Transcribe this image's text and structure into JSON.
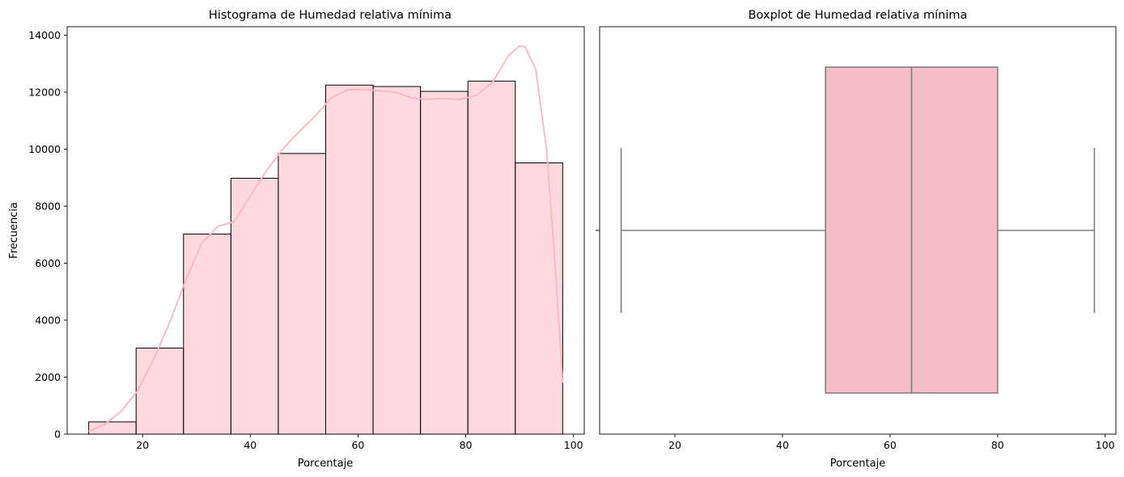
{
  "chart_data": [
    {
      "type": "bar",
      "subtype": "histogram-with-kde",
      "title": "Histograma de Humedad relativa mínima",
      "xlabel": "Porcentaje",
      "ylabel": "Frecuencia",
      "xlim": [
        6,
        102
      ],
      "ylim": [
        0,
        14300
      ],
      "xticks": [
        20,
        40,
        60,
        80,
        100
      ],
      "yticks": [
        0,
        2000,
        4000,
        6000,
        8000,
        10000,
        12000,
        14000
      ],
      "bin_edges": [
        10,
        18.8,
        27.6,
        36.4,
        45.2,
        54,
        62.8,
        71.6,
        80.4,
        89.2,
        98
      ],
      "values": [
        430,
        3020,
        7020,
        8980,
        9850,
        12250,
        12200,
        12030,
        12390,
        9520
      ],
      "bar_color": "#ffb6c1",
      "bar_edge_color": "#000000",
      "kde": {
        "color": "#ffb6c1",
        "x": [
          10,
          13,
          16,
          19,
          22,
          25,
          28,
          31,
          34,
          37,
          40,
          43,
          46,
          49,
          52,
          55,
          58,
          61,
          64,
          67,
          70,
          73,
          76,
          79,
          82,
          85,
          88,
          90,
          91,
          93,
          95,
          96.5,
          98
        ],
        "y": [
          100,
          350,
          800,
          1500,
          2600,
          3900,
          5400,
          6700,
          7300,
          7450,
          8350,
          9250,
          10000,
          10600,
          11150,
          11800,
          12080,
          12100,
          12050,
          12000,
          11800,
          11750,
          11780,
          11750,
          11900,
          12350,
          13300,
          13620,
          13600,
          12800,
          10000,
          6200,
          1800
        ]
      }
    },
    {
      "type": "box",
      "title": "Boxplot de Humedad relativa mínima",
      "xlabel": "Porcentaje",
      "xlim": [
        6,
        102
      ],
      "xticks": [
        20,
        40,
        60,
        80,
        100
      ],
      "whisker_low": 10,
      "q1": 48,
      "median": 64,
      "q3": 80,
      "whisker_high": 98,
      "box_color": "#f4bdc8",
      "line_color": "#808080"
    }
  ]
}
